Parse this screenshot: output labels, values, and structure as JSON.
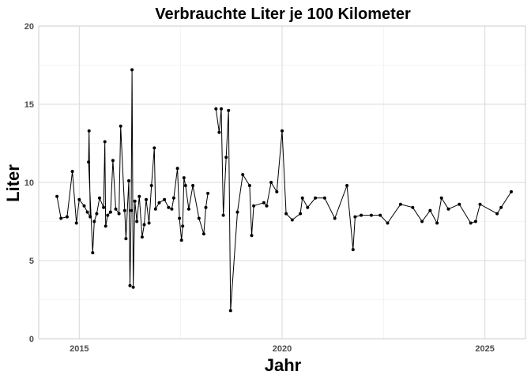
{
  "chart_data": {
    "type": "line",
    "title": "Verbrauchte Liter je 100 Kilometer",
    "xlabel": "Jahr",
    "ylabel": "Liter",
    "xlim": [
      2014.0,
      2026.0
    ],
    "ylim": [
      0,
      20
    ],
    "x_ticks": [
      2015,
      2020,
      2025
    ],
    "y_ticks": [
      0,
      5,
      10,
      15,
      20
    ],
    "grid": true,
    "series": [
      {
        "segments": [
          [
            [
              2014.45,
              9.1
            ],
            [
              2014.55,
              7.7
            ],
            [
              2014.7,
              7.8
            ],
            [
              2014.83,
              10.7
            ],
            [
              2014.93,
              7.4
            ],
            [
              2015.0,
              8.9
            ],
            [
              2015.12,
              8.5
            ],
            [
              2015.2,
              8.1
            ],
            [
              2015.27,
              7.8
            ],
            [
              2015.24,
              13.3
            ],
            [
              2015.23,
              11.3
            ],
            [
              2015.33,
              5.5
            ],
            [
              2015.37,
              7.5
            ],
            [
              2015.43,
              8.0
            ],
            [
              2015.5,
              9.0
            ],
            [
              2015.6,
              8.4
            ],
            [
              2015.63,
              12.6
            ],
            [
              2015.65,
              7.2
            ],
            [
              2015.7,
              7.9
            ],
            [
              2015.77,
              8.1
            ],
            [
              2015.83,
              11.4
            ],
            [
              2015.9,
              8.3
            ],
            [
              2015.98,
              8.0
            ],
            [
              2016.02,
              13.6
            ],
            [
              2016.12,
              8.2
            ],
            [
              2016.15,
              6.4
            ],
            [
              2016.22,
              10.1
            ],
            [
              2016.25,
              3.4
            ],
            [
              2016.28,
              8.2
            ],
            [
              2016.3,
              17.2
            ],
            [
              2016.33,
              3.3
            ],
            [
              2016.37,
              8.8
            ],
            [
              2016.42,
              7.5
            ],
            [
              2016.48,
              9.1
            ],
            [
              2016.55,
              6.5
            ],
            [
              2016.6,
              7.3
            ],
            [
              2016.65,
              8.9
            ],
            [
              2016.72,
              7.4
            ],
            [
              2016.78,
              9.8
            ],
            [
              2016.85,
              12.2
            ],
            [
              2016.88,
              8.3
            ],
            [
              2016.97,
              8.7
            ],
            [
              2017.1,
              8.9
            ],
            [
              2017.2,
              8.4
            ],
            [
              2017.28,
              8.3
            ],
            [
              2017.33,
              9.0
            ],
            [
              2017.42,
              10.9
            ],
            [
              2017.47,
              7.7
            ],
            [
              2017.52,
              6.3
            ],
            [
              2017.55,
              7.2
            ],
            [
              2017.58,
              10.3
            ],
            [
              2017.62,
              9.8
            ],
            [
              2017.7,
              8.3
            ],
            [
              2017.8,
              9.8
            ],
            [
              2017.95,
              7.7
            ],
            [
              2018.07,
              6.7
            ],
            [
              2018.12,
              8.4
            ],
            [
              2018.17,
              9.3
            ]
          ],
          [
            [
              2018.37,
              14.7
            ],
            [
              2018.45,
              13.2
            ],
            [
              2018.5,
              14.7
            ],
            [
              2018.55,
              7.9
            ],
            [
              2018.62,
              11.6
            ],
            [
              2018.68,
              14.6
            ],
            [
              2018.73,
              1.8
            ],
            [
              2018.9,
              8.1
            ],
            [
              2019.03,
              10.5
            ],
            [
              2019.2,
              9.8
            ],
            [
              2019.25,
              6.6
            ],
            [
              2019.3,
              8.5
            ],
            [
              2019.55,
              8.7
            ],
            [
              2019.62,
              8.5
            ],
            [
              2019.73,
              10.0
            ],
            [
              2019.87,
              9.4
            ],
            [
              2020.0,
              13.3
            ],
            [
              2020.1,
              8.0
            ],
            [
              2020.25,
              7.6
            ],
            [
              2020.45,
              8.0
            ],
            [
              2020.5,
              9.0
            ],
            [
              2020.63,
              8.4
            ],
            [
              2020.82,
              9.0
            ],
            [
              2021.05,
              9.0
            ],
            [
              2021.3,
              7.7
            ],
            [
              2021.6,
              9.8
            ],
            [
              2021.75,
              5.7
            ],
            [
              2021.8,
              7.8
            ],
            [
              2021.95,
              7.9
            ],
            [
              2022.2,
              7.9
            ],
            [
              2022.42,
              7.9
            ],
            [
              2022.6,
              7.4
            ],
            [
              2022.92,
              8.6
            ],
            [
              2023.22,
              8.4
            ],
            [
              2023.45,
              7.5
            ],
            [
              2023.65,
              8.2
            ],
            [
              2023.82,
              7.4
            ],
            [
              2023.93,
              9.0
            ],
            [
              2024.1,
              8.3
            ],
            [
              2024.37,
              8.6
            ],
            [
              2024.65,
              7.4
            ],
            [
              2024.77,
              7.5
            ],
            [
              2024.88,
              8.6
            ],
            [
              2025.3,
              8.0
            ],
            [
              2025.4,
              8.4
            ],
            [
              2025.65,
              9.4
            ]
          ]
        ]
      }
    ]
  }
}
